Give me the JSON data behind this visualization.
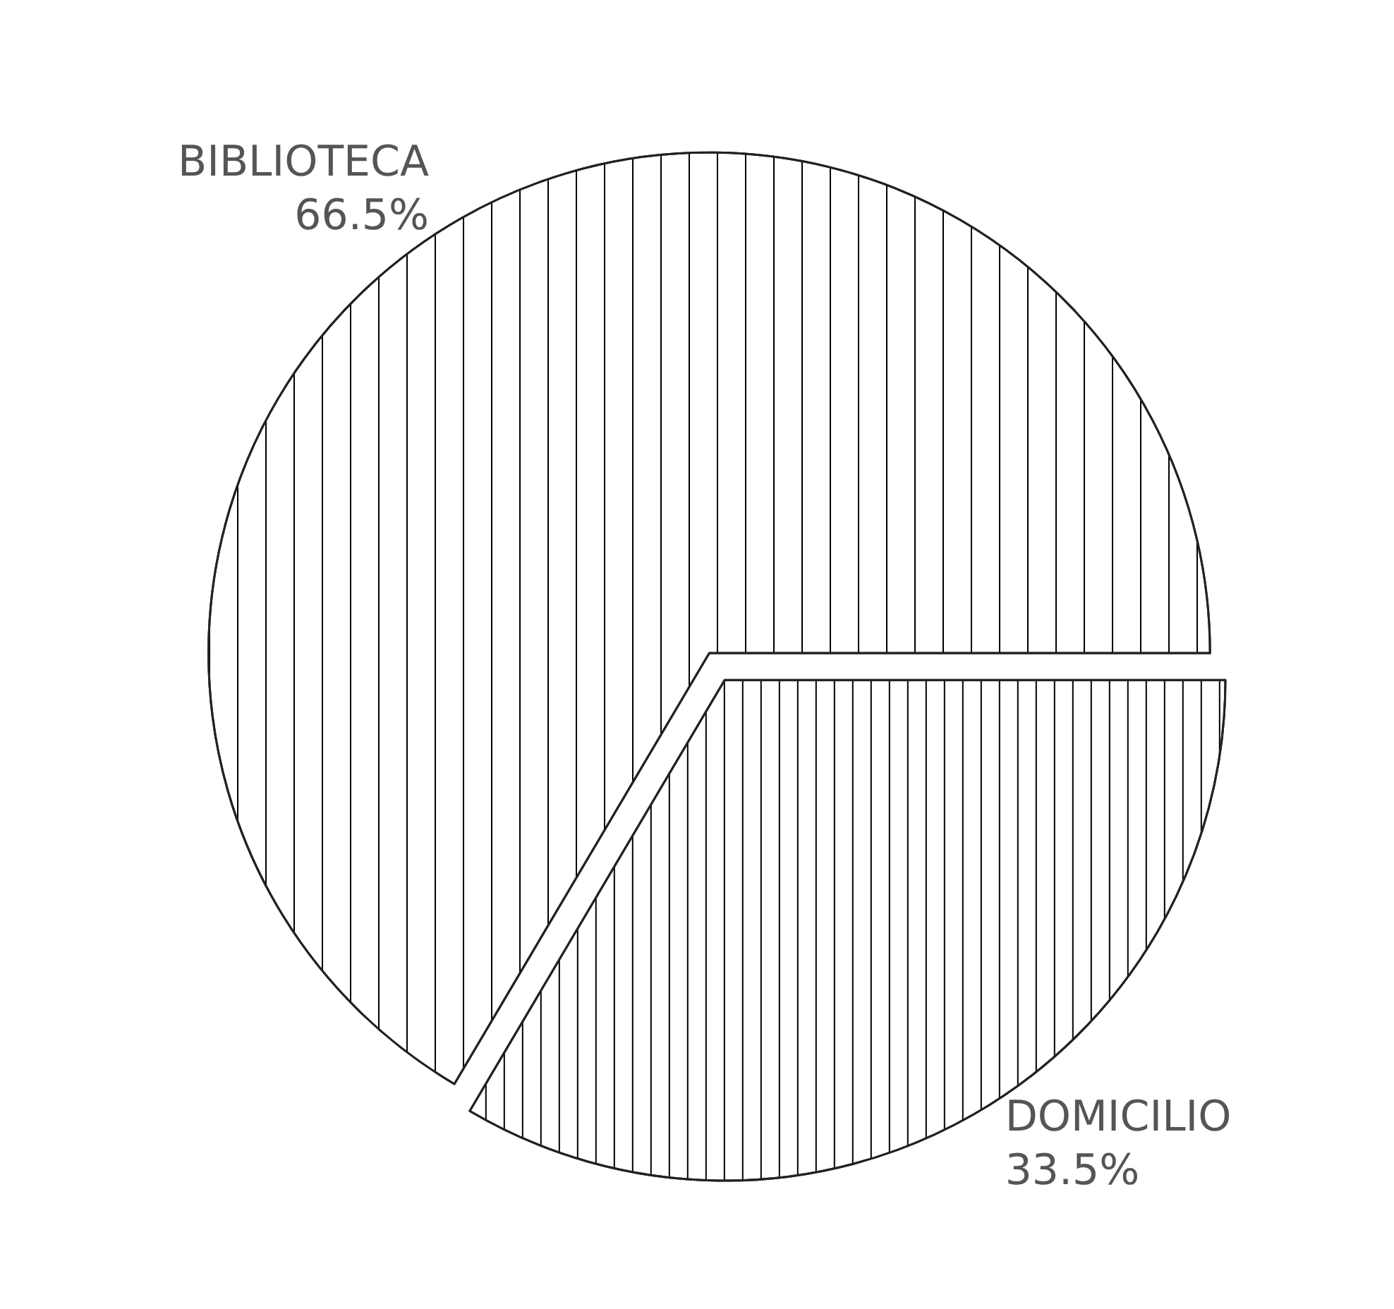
{
  "chart_data": {
    "type": "pie",
    "categories": [
      "DOMICILIO",
      "BIBLIOTECA"
    ],
    "values": [
      33.5,
      66.5
    ],
    "colors": [
      "#ffffff",
      "#ffffff"
    ],
    "value_labels": [
      "33.5%",
      "66.5%"
    ]
  }
}
